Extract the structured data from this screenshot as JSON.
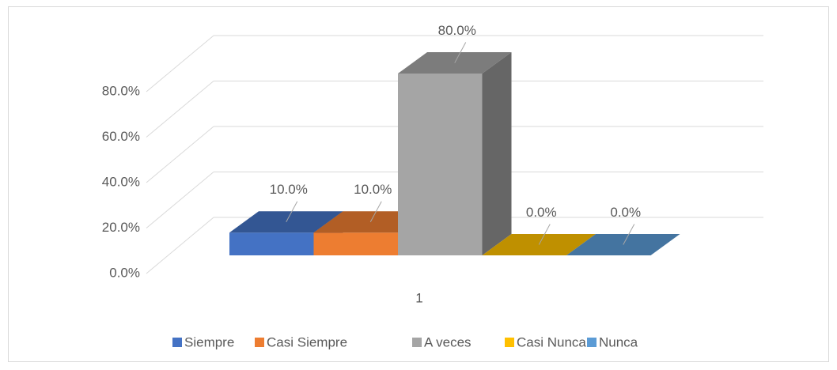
{
  "chart_data": {
    "type": "bar3d",
    "categories": [
      "1"
    ],
    "series": [
      {
        "name": "Siempre",
        "color": "#4472c4",
        "values": [
          10
        ],
        "value_labels": [
          "10.0%"
        ]
      },
      {
        "name": "Casi Siempre",
        "color": "#ed7d31",
        "values": [
          10
        ],
        "value_labels": [
          "10.0%"
        ]
      },
      {
        "name": "A veces",
        "color": "#a5a5a5",
        "values": [
          80
        ],
        "value_labels": [
          "80.0%"
        ]
      },
      {
        "name": "Casi Nunca",
        "color": "#ffc000",
        "values": [
          0
        ],
        "value_labels": [
          "0.0%"
        ]
      },
      {
        "name": "Nunca",
        "color": "#5b9bd5",
        "values": [
          0
        ],
        "value_labels": [
          "0.0%"
        ]
      }
    ],
    "ylim": [
      0,
      80
    ],
    "yticks": [
      {
        "value": 0,
        "label": "0.0%"
      },
      {
        "value": 20,
        "label": "20.0%"
      },
      {
        "value": 40,
        "label": "40.0%"
      },
      {
        "value": 60,
        "label": "60.0%"
      },
      {
        "value": 80,
        "label": "80.0%"
      }
    ],
    "grid": true,
    "legend": "bottom"
  }
}
